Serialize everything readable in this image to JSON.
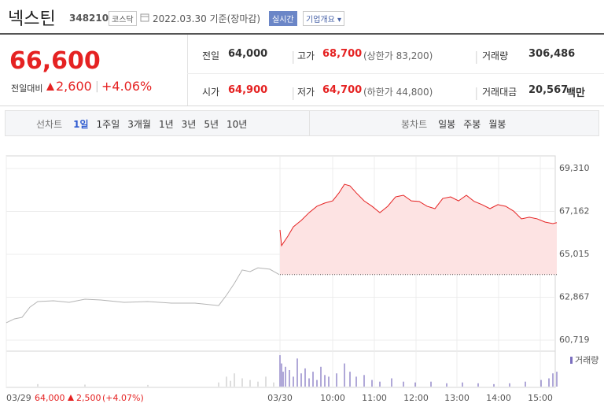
{
  "header": {
    "name": "넥스틴",
    "code": "348210",
    "market": "코스닥",
    "date": "2022.03.30 기준(장마감)",
    "realtime": "실시간",
    "company_info": "기업개요"
  },
  "quote": {
    "price": "66,600",
    "change_label": "전일대비",
    "change": "2,600",
    "change_rate": "+4.06%",
    "stats": [
      {
        "label": "전일",
        "value": "64,000"
      },
      {
        "label": "고가",
        "value": "68,700",
        "note": "(상한가 83,200)"
      },
      {
        "label": "거래량",
        "value": "306,486"
      },
      {
        "label": "시가",
        "value": "64,900"
      },
      {
        "label": "저가",
        "value": "64,700",
        "note": "(하한가 44,800)"
      },
      {
        "label": "거래대금",
        "value": "20,567",
        "unit": "백만"
      }
    ]
  },
  "tabs": {
    "line_label": "선차트",
    "line": [
      "1일",
      "1주일",
      "3개월",
      "1년",
      "3년",
      "5년",
      "10년"
    ],
    "candle_label": "봉차트",
    "candle": [
      "일봉",
      "주봉",
      "월봉"
    ]
  },
  "chart_data": {
    "type": "line",
    "xlim": [
      0,
      700
    ],
    "xticks": [
      {
        "value": 0,
        "label": "03/29"
      },
      {
        "value": 348,
        "label": "03/30"
      },
      {
        "value": 415,
        "label": "10:00"
      },
      {
        "value": 468,
        "label": "11:00"
      },
      {
        "value": 521,
        "label": "12:00"
      },
      {
        "value": 573,
        "label": "13:00"
      },
      {
        "value": 626,
        "label": "14:00"
      },
      {
        "value": 679,
        "label": "15:00"
      }
    ],
    "ylim": [
      60719,
      69310
    ],
    "yticks": [
      {
        "value": 69310,
        "label": "69,310"
      },
      {
        "value": 67162,
        "label": "67,162"
      },
      {
        "value": 65015,
        "label": "65,015"
      },
      {
        "value": 62867,
        "label": "62,867"
      },
      {
        "value": 60719,
        "label": "60,719"
      }
    ],
    "grid": true,
    "series": [
      {
        "color": "#b4b4b4",
        "x": [
          0,
          10,
          20,
          30,
          40,
          60,
          80,
          100,
          120,
          150,
          180,
          210,
          240,
          270,
          280,
          290,
          300,
          310,
          320,
          335,
          347
        ],
        "values": [
          61590,
          61780,
          61860,
          62370,
          62650,
          62690,
          62610,
          62770,
          62730,
          62610,
          62650,
          62570,
          62570,
          62450,
          62970,
          63560,
          64230,
          64150,
          64340,
          64270,
          64000
        ]
      },
      {
        "color": "#e52222",
        "fill": "#fde3e3",
        "x": [
          348,
          350,
          358,
          365,
          375,
          385,
          395,
          405,
          415,
          423,
          430,
          437,
          445,
          455,
          465,
          475,
          485,
          495,
          505,
          515,
          525,
          535,
          545,
          555,
          565,
          575,
          585,
          595,
          605,
          615,
          625,
          635,
          645,
          655,
          665,
          675,
          685,
          695,
          700
        ],
        "values": [
          66240,
          65450,
          65920,
          66390,
          66710,
          67100,
          67420,
          67580,
          67690,
          68090,
          68520,
          68440,
          68090,
          67690,
          67420,
          67100,
          67420,
          67890,
          67970,
          67690,
          67660,
          67420,
          67300,
          67810,
          67890,
          67690,
          67970,
          67660,
          67500,
          67300,
          67500,
          67420,
          67180,
          66790,
          66870,
          66790,
          66630,
          66550,
          66600
        ]
      }
    ],
    "volume": {
      "name": "거래량",
      "ylim": [
        0,
        20000
      ],
      "series": [
        {
          "color": "#c8c8c8",
          "x": [
            40,
            100,
            180,
            270,
            280,
            285,
            290,
            300,
            310,
            320,
            330,
            340
          ],
          "values": [
            1500,
            1200,
            1000,
            2500,
            6000,
            3500,
            8000,
            5000,
            4000,
            3000,
            6000,
            2500
          ]
        },
        {
          "color": "#7b6fbf",
          "x": [
            348,
            350,
            352,
            355,
            360,
            365,
            370,
            375,
            380,
            385,
            390,
            395,
            400,
            405,
            410,
            420,
            430,
            437,
            445,
            455,
            465,
            475,
            490,
            505,
            520,
            540,
            560,
            580,
            600,
            620,
            640,
            660,
            680,
            690,
            695,
            700
          ],
          "values": [
            19000,
            14000,
            9000,
            12000,
            10000,
            6000,
            17000,
            8000,
            11000,
            5000,
            9000,
            4000,
            12000,
            7000,
            6000,
            8000,
            14000,
            9000,
            6000,
            7000,
            4000,
            3000,
            5000,
            3000,
            2500,
            3000,
            2000,
            2500,
            2000,
            1500,
            2000,
            3000,
            4000,
            5000,
            8000,
            9000
          ]
        }
      ]
    },
    "footer": {
      "date": "03/29",
      "close": {
        "value": 64000,
        "label": "64,000"
      },
      "change": "2,500",
      "change_rate": "(+4.07%)"
    }
  }
}
